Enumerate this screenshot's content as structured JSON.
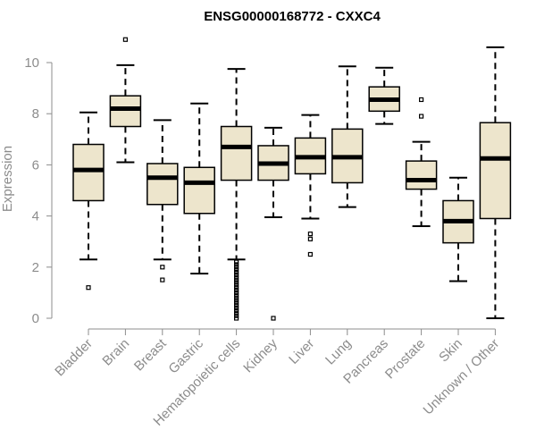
{
  "chart_data": {
    "type": "box",
    "title": "ENSG00000168772 - CXXC4",
    "xlabel": "",
    "ylabel": "Expression",
    "ylim": [
      0,
      10
    ],
    "yticks": [
      0,
      2,
      4,
      6,
      8,
      10
    ],
    "grid": false,
    "box_color": "#ede5cc",
    "categories": [
      "Bladder",
      "Brain",
      "Breast",
      "Gastric",
      "Hematopoietic cells",
      "Kidney",
      "Liver",
      "Lung",
      "Pancreas",
      "Prostate",
      "Skin",
      "Unknown / Other"
    ],
    "boxes": [
      {
        "category": "Bladder",
        "whisker_low": 2.3,
        "q1": 4.6,
        "median": 5.8,
        "q3": 6.8,
        "whisker_high": 8.05,
        "outliers": [
          1.2
        ]
      },
      {
        "category": "Brain",
        "whisker_low": 6.1,
        "q1": 7.5,
        "median": 8.2,
        "q3": 8.7,
        "whisker_high": 9.9,
        "outliers": [
          10.9
        ]
      },
      {
        "category": "Breast",
        "whisker_low": 2.3,
        "q1": 4.45,
        "median": 5.5,
        "q3": 6.05,
        "whisker_high": 7.75,
        "outliers": [
          2.0,
          1.5
        ]
      },
      {
        "category": "Gastric",
        "whisker_low": 1.75,
        "q1": 4.1,
        "median": 5.3,
        "q3": 5.9,
        "whisker_high": 8.4,
        "outliers": []
      },
      {
        "category": "Hematopoietic cells",
        "whisker_low": 2.3,
        "q1": 5.4,
        "median": 6.7,
        "q3": 7.5,
        "whisker_high": 9.75,
        "outliers": [
          2.2,
          2.1,
          2.0,
          1.9,
          1.8,
          1.7,
          1.6,
          1.5,
          1.4,
          1.3,
          1.2,
          1.1,
          1.0,
          0.9,
          0.8,
          0.7,
          0.6,
          0.5,
          0.4,
          0.3,
          0.2,
          0.1,
          0.0
        ]
      },
      {
        "category": "Kidney",
        "whisker_low": 3.95,
        "q1": 5.4,
        "median": 6.05,
        "q3": 6.75,
        "whisker_high": 7.45,
        "outliers": [
          0.0
        ]
      },
      {
        "category": "Liver",
        "whisker_low": 3.9,
        "q1": 5.65,
        "median": 6.3,
        "q3": 7.05,
        "whisker_high": 7.95,
        "outliers": [
          3.3,
          3.1,
          2.5
        ]
      },
      {
        "category": "Lung",
        "whisker_low": 4.35,
        "q1": 5.3,
        "median": 6.3,
        "q3": 7.4,
        "whisker_high": 9.85,
        "outliers": []
      },
      {
        "category": "Pancreas",
        "whisker_low": 7.6,
        "q1": 8.1,
        "median": 8.55,
        "q3": 9.05,
        "whisker_high": 9.8,
        "outliers": []
      },
      {
        "category": "Prostate",
        "whisker_low": 3.6,
        "q1": 5.05,
        "median": 5.4,
        "q3": 6.15,
        "whisker_high": 6.9,
        "outliers": [
          8.55,
          7.9
        ]
      },
      {
        "category": "Skin",
        "whisker_low": 1.45,
        "q1": 2.95,
        "median": 3.8,
        "q3": 4.6,
        "whisker_high": 5.5,
        "outliers": []
      },
      {
        "category": "Unknown / Other",
        "whisker_low": 0.0,
        "q1": 3.9,
        "median": 6.25,
        "q3": 7.65,
        "whisker_high": 10.6,
        "outliers": []
      }
    ]
  }
}
